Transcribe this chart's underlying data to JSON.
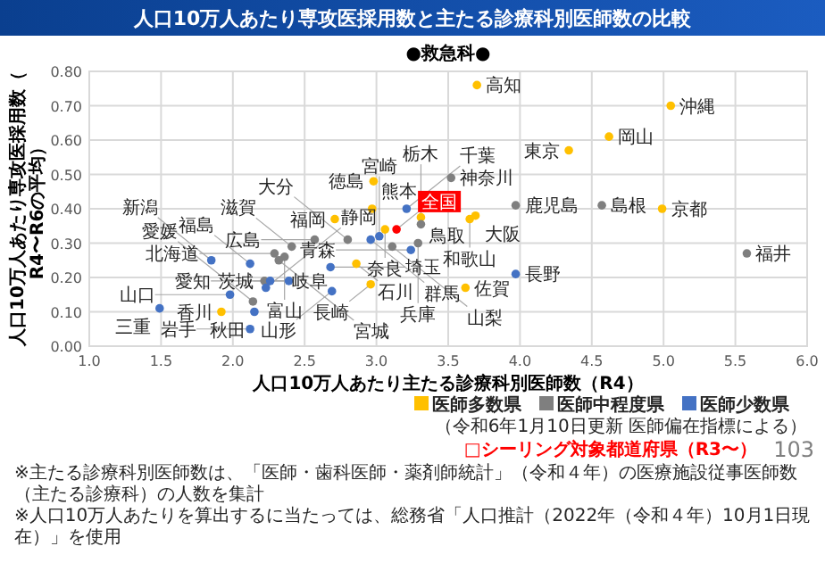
{
  "chart_data": {
    "type": "scatter",
    "title": "人口10万人あたり専攻医採用数と主たる診療科別医師数の比較",
    "subtitle": "●救急科●",
    "xlabel": "人口10万人あたり主たる診療科別医師数（R4）",
    "ylabel": "人口10万人あたり専攻医採用数（R4〜R6の平均）",
    "xlim": [
      1,
      6
    ],
    "xticks": [
      {
        "value": 1,
        "label": "1.0"
      },
      {
        "value": 1.5,
        "label": "1.5"
      },
      {
        "value": 2,
        "label": "2.0"
      },
      {
        "value": 2.5,
        "label": "2.5"
      },
      {
        "value": 3,
        "label": "3.0"
      },
      {
        "value": 3.5,
        "label": "3.5"
      },
      {
        "value": 4,
        "label": "4.0"
      },
      {
        "value": 4.5,
        "label": "4.5"
      },
      {
        "value": 5,
        "label": "5.0"
      },
      {
        "value": 5.5,
        "label": "5.5"
      },
      {
        "value": 6,
        "label": "6.0"
      }
    ],
    "ylim": [
      0,
      0.8
    ],
    "yticks": [
      {
        "value": 0,
        "label": "0.00"
      },
      {
        "value": 0.1,
        "label": "0.10"
      },
      {
        "value": 0.2,
        "label": "0.20"
      },
      {
        "value": 0.3,
        "label": "0.30"
      },
      {
        "value": 0.4,
        "label": "0.40"
      },
      {
        "value": 0.5,
        "label": "0.50"
      },
      {
        "value": 0.6,
        "label": "0.60"
      },
      {
        "value": 0.7,
        "label": "0.70"
      },
      {
        "value": 0.8,
        "label": "0.80"
      }
    ],
    "grid": true,
    "legend": "bottom right",
    "marker": "circle",
    "series": [
      {
        "name": "医師多数県",
        "color": "#ffc000",
        "x": [
          3.7,
          5.05,
          4.62,
          4.34,
          4.99,
          3.69,
          3.65,
          3.31,
          2.98,
          2.97,
          2.71,
          3.06,
          2.86,
          2.96,
          1.92,
          3.62
        ],
        "values": [
          0.76,
          0.7,
          0.61,
          0.57,
          0.4,
          0.38,
          0.37,
          0.375,
          0.48,
          0.4,
          0.37,
          0.34,
          0.24,
          0.18,
          0.1,
          0.17
        ]
      },
      {
        "name": "医師中程度県",
        "color": "#7f7f7f",
        "x": [
          3.52,
          3.97,
          4.57,
          3.31,
          2.8,
          2.57,
          2.41,
          2.29,
          2.36,
          2.32,
          3.11,
          3.29,
          2.22,
          2.14,
          5.58
        ],
        "values": [
          0.49,
          0.41,
          0.41,
          0.355,
          0.31,
          0.31,
          0.29,
          0.27,
          0.26,
          0.25,
          0.29,
          0.3,
          0.19,
          0.13,
          0.27
        ]
      },
      {
        "name": "医師少数県",
        "color": "#4472c4",
        "x": [
          3.21,
          3.02,
          2.96,
          3.24,
          1.85,
          2.12,
          2.68,
          2.39,
          2.26,
          2.23,
          1.98,
          2.69,
          1.49,
          2.15,
          2.12,
          3.97
        ],
        "values": [
          0.4,
          0.32,
          0.31,
          0.28,
          0.25,
          0.24,
          0.23,
          0.19,
          0.19,
          0.17,
          0.15,
          0.16,
          0.11,
          0.1,
          0.05,
          0.21
        ]
      },
      {
        "name": "全国",
        "color": "#ff0000",
        "x": [
          3.14
        ],
        "values": [
          0.34
        ]
      }
    ],
    "annotations": [
      {
        "text": "高知",
        "x": 3.7,
        "y": 0.76
      },
      {
        "text": "沖縄",
        "x": 5.05,
        "y": 0.7
      },
      {
        "text": "岡山",
        "x": 4.62,
        "y": 0.61
      },
      {
        "text": "東京",
        "x": 4.34,
        "y": 0.57
      },
      {
        "text": "京都",
        "x": 4.99,
        "y": 0.4
      },
      {
        "text": "大阪",
        "x": 3.69,
        "y": 0.38
      },
      {
        "text": "和歌山",
        "x": 3.65,
        "y": 0.37
      },
      {
        "text": "鳥取",
        "x": 3.31,
        "y": 0.375
      },
      {
        "text": "徳島",
        "x": 2.98,
        "y": 0.48
      },
      {
        "text": "熊本",
        "x": 2.97,
        "y": 0.4
      },
      {
        "text": "福岡",
        "x": 2.71,
        "y": 0.37
      },
      {
        "text": "奈良",
        "x": 3.06,
        "y": 0.34
      },
      {
        "text": "石川",
        "x": 2.86,
        "y": 0.24
      },
      {
        "text": "長崎",
        "x": 2.96,
        "y": 0.18
      },
      {
        "text": "香川",
        "x": 1.92,
        "y": 0.1
      },
      {
        "text": "佐賀",
        "x": 3.62,
        "y": 0.17
      },
      {
        "text": "神奈川",
        "x": 3.52,
        "y": 0.49
      },
      {
        "text": "鹿児島",
        "x": 3.97,
        "y": 0.41
      },
      {
        "text": "島根",
        "x": 4.57,
        "y": 0.41
      },
      {
        "text": "栃木",
        "x": 3.31,
        "y": 0.355
      },
      {
        "text": "大分",
        "x": 2.8,
        "y": 0.31
      },
      {
        "text": "広島",
        "x": 2.57,
        "y": 0.31
      },
      {
        "text": "滋賀",
        "x": 2.41,
        "y": 0.29
      },
      {
        "text": "北海道",
        "x": 2.29,
        "y": 0.27
      },
      {
        "text": "富山",
        "x": 2.36,
        "y": 0.26
      },
      {
        "text": "宮城",
        "x": 2.32,
        "y": 0.25
      },
      {
        "text": "山梨",
        "x": 3.11,
        "y": 0.29
      },
      {
        "text": "兵庫",
        "x": 3.29,
        "y": 0.3
      },
      {
        "text": "愛知",
        "x": 2.22,
        "y": 0.19
      },
      {
        "text": "愛媛",
        "x": 2.14,
        "y": 0.13
      },
      {
        "text": "福井",
        "x": 5.58,
        "y": 0.27
      },
      {
        "text": "千葉",
        "x": 3.21,
        "y": 0.4
      },
      {
        "text": "宮崎",
        "x": 3.02,
        "y": 0.32
      },
      {
        "text": "群馬",
        "x": 2.96,
        "y": 0.31
      },
      {
        "text": "青森",
        "x": 3.24,
        "y": 0.28
      },
      {
        "text": "新潟",
        "x": 1.85,
        "y": 0.25
      },
      {
        "text": "福島",
        "x": 2.12,
        "y": 0.24
      },
      {
        "text": "埼玉",
        "x": 2.68,
        "y": 0.23
      },
      {
        "text": "茨城",
        "x": 2.39,
        "y": 0.19
      },
      {
        "text": "岐阜",
        "x": 2.26,
        "y": 0.19
      },
      {
        "text": "静岡",
        "x": 2.23,
        "y": 0.17
      },
      {
        "text": "山口",
        "x": 1.98,
        "y": 0.15
      },
      {
        "text": "山形",
        "x": 2.69,
        "y": 0.16
      },
      {
        "text": "三重",
        "x": 1.49,
        "y": 0.11
      },
      {
        "text": "秋田",
        "x": 2.15,
        "y": 0.1
      },
      {
        "text": "岩手",
        "x": 2.12,
        "y": 0.05
      },
      {
        "text": "長野",
        "x": 3.97,
        "y": 0.21
      },
      "（令和6年1月10日更新 医師偏在指標による）",
      "□シーリング対象都道府県（R3〜）",
      "103",
      "※主たる診療科別医師数は、「医師・歯科医師・薬剤師統計」（令和４年）の医療施設従事医師数（主たる診療科）の人数を集計",
      "※人口10万人あたりを算出するに当たっては、総務省「人口推計（2022年（令和４年）10月1日現在）」を使用"
    ]
  }
}
